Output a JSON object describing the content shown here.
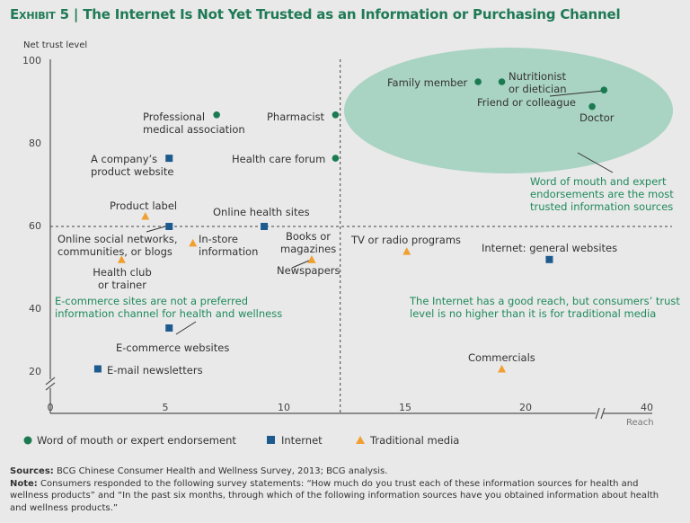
{
  "title": {
    "exhibit": "Exhibit 5",
    "text": "The Internet Is Not Yet Trusted as an Information or Purchasing Channel"
  },
  "chart_data": {
    "type": "scatter",
    "ylabel": "Net trust level",
    "xlabel": "Reach",
    "x_ticks": [
      "0",
      "5",
      "10",
      "15",
      "20",
      "40"
    ],
    "y_ticks": [
      "100",
      "80",
      "60",
      "40",
      "20"
    ],
    "axis_breaks": {
      "x": "between 20 and 40",
      "y": "below 20"
    },
    "reference_lines": {
      "x": 12.2,
      "y": 60
    },
    "series_colors": {
      "wom": "#1a7a50",
      "internet": "#1d5a8e",
      "traditional": "#f0a030"
    },
    "legend": [
      {
        "key": "wom",
        "label": "Word of mouth or expert endorsement",
        "marker": "circle"
      },
      {
        "key": "internet",
        "label": "Internet",
        "marker": "square"
      },
      {
        "key": "traditional",
        "label": "Traditional media",
        "marker": "triangle"
      }
    ],
    "points": [
      {
        "label": "Family member",
        "series": "wom",
        "x": 18,
        "y": 95
      },
      {
        "label": "Nutritionist\nor dietician",
        "series": "wom",
        "x": 19,
        "y": 95
      },
      {
        "label": "Friend or colleague",
        "series": "wom",
        "x": 23.3,
        "y": 93
      },
      {
        "label": "Doctor",
        "series": "wom",
        "x": 22.8,
        "y": 89
      },
      {
        "label": "Professional\nmedical association",
        "series": "wom",
        "x": 7,
        "y": 87
      },
      {
        "label": "Pharmacist",
        "series": "wom",
        "x": 12,
        "y": 87
      },
      {
        "label": "Health care forum",
        "series": "wom",
        "x": 12,
        "y": 76.5
      },
      {
        "label": "A company’s\nproduct website",
        "series": "internet",
        "x": 5,
        "y": 76.5
      },
      {
        "label": "Product label",
        "series": "traditional",
        "x": 4,
        "y": 62.5
      },
      {
        "label": "Online social networks,\ncommunities, or blogs",
        "series": "internet",
        "x": 5,
        "y": 60
      },
      {
        "label": "Online health sites",
        "series": "internet",
        "x": 9,
        "y": 60
      },
      {
        "label": "In-store\ninformation",
        "series": "traditional",
        "x": 6,
        "y": 56
      },
      {
        "label": "Health club\nor trainer",
        "series": "traditional",
        "x": 3,
        "y": 52
      },
      {
        "label": "Books or\nmagazines",
        "series": "traditional",
        "x": 11,
        "y": 52
      },
      {
        "label": "Newspapers",
        "series": "traditional",
        "x": 11,
        "y": 52
      },
      {
        "label": "TV or radio programs",
        "series": "traditional",
        "x": 15,
        "y": 54
      },
      {
        "label": "Internet: general websites",
        "series": "internet",
        "x": 21,
        "y": 52
      },
      {
        "label": "E-commerce websites",
        "series": "internet",
        "x": 5,
        "y": 34
      },
      {
        "label": "E-mail newsletters",
        "series": "internet",
        "x": 2,
        "y": 21
      },
      {
        "label": "Commercials",
        "series": "traditional",
        "x": 19,
        "y": 21
      }
    ],
    "annotations": [
      "Word of mouth and expert\nendorsements are the most\ntrusted information sources",
      "E-commerce sites are not a preferred\ninformation channel for health and wellness",
      "The Internet has a good reach, but consumers’ trust\nlevel is no higher than it is for traditional media"
    ]
  },
  "footer": {
    "sources_label": "Sources:",
    "sources": "BCG Chinese Consumer Health and Wellness Survey, 2013; BCG analysis.",
    "note_label": "Note:",
    "note": "Consumers responded to the following survey statements: “How much do you trust each of these information sources for health and wellness products” and “In the past six months, through which of the following information sources have you obtained information about health and wellness products.”"
  }
}
